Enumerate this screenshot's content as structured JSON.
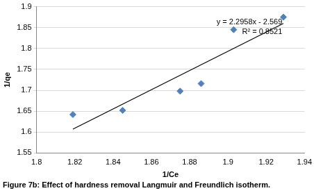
{
  "chart_data": {
    "type": "scatter",
    "title": "Figure 7b: Effect of hardness removal Langmuir and Freundlich isotherm.",
    "x_label": "1/Ce",
    "y_label": "1/qe",
    "annotations": [
      "y = 2.2958x - 2.569",
      "R² = 0.8521"
    ],
    "series": [
      {
        "type": "scatter",
        "marker": "diamond",
        "color": "#4f81bd",
        "x": [
          1.819,
          1.845,
          1.875,
          1.886,
          1.903,
          1.929
        ],
        "values": [
          1.642,
          1.652,
          1.698,
          1.716,
          1.845,
          1.875
        ]
      },
      {
        "type": "line",
        "line_style": "solid",
        "color": "#000000",
        "x": [
          1.819,
          1.929
        ],
        "values": [
          1.607,
          1.86
        ]
      }
    ],
    "xlim": [
      1.8,
      1.94
    ],
    "xticks": [
      1.8,
      1.82,
      1.84,
      1.86,
      1.88,
      1.9,
      1.92,
      1.94
    ],
    "ylim": [
      1.55,
      1.9
    ],
    "yticks": [
      1.55,
      1.6,
      1.65,
      1.7,
      1.75,
      1.8,
      1.85,
      1.9
    ],
    "grid": "y"
  }
}
